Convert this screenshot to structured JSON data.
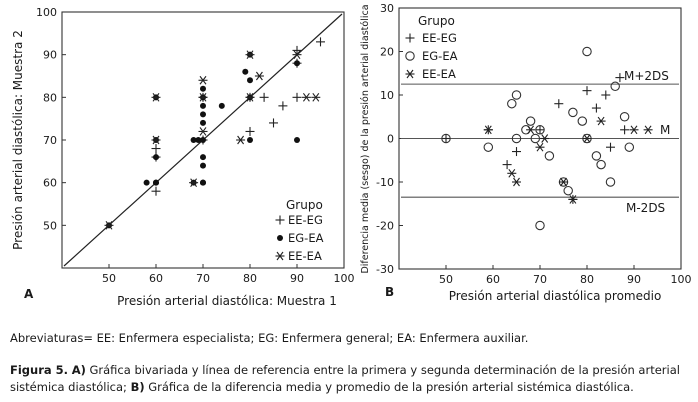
{
  "chart_data": [
    {
      "type": "scatter",
      "panel_label": "A",
      "xlabel": "Presión arterial diastólica: Muestra 1",
      "ylabel": "Presión arterial diastólica: Muestra 2",
      "xlim": [
        40,
        100
      ],
      "ylim": [
        40,
        100
      ],
      "x_ticks": [
        "50",
        "60",
        "70",
        "80",
        "90",
        "100"
      ],
      "y_ticks": [
        "100",
        "90",
        "80",
        "70",
        "60",
        "50"
      ],
      "grid": false,
      "reference_line": "y = x",
      "legend": {
        "title": "Grupo",
        "position": "bottom-right",
        "entries": [
          "EE-EG",
          "EG-EA",
          "EE-EA"
        ]
      },
      "series": [
        {
          "name": "EE-EG",
          "marker": "plus",
          "x": [
            60,
            60,
            60,
            70,
            70,
            80,
            80,
            83,
            85,
            87,
            90,
            90,
            90,
            95
          ],
          "y": [
            58,
            66,
            68,
            70,
            80,
            80,
            72,
            80,
            74,
            78,
            80,
            88,
            91,
            93
          ]
        },
        {
          "name": "EG-EA",
          "marker": "dot",
          "x": [
            50,
            58,
            60,
            60,
            60,
            60,
            60,
            68,
            68,
            69,
            70,
            70,
            70,
            70,
            70,
            70,
            70,
            70,
            70,
            70,
            74,
            79,
            80,
            80,
            80,
            80,
            90,
            90
          ],
          "y": [
            50,
            60,
            60,
            60,
            66,
            70,
            80,
            60,
            70,
            70,
            60,
            60,
            64,
            66,
            70,
            74,
            76,
            78,
            80,
            82,
            78,
            86,
            84,
            80,
            90,
            70,
            70,
            88
          ]
        },
        {
          "name": "EE-EA",
          "marker": "star",
          "x": [
            50,
            60,
            60,
            68,
            70,
            70,
            70,
            78,
            80,
            80,
            82,
            90,
            92,
            94
          ],
          "y": [
            50,
            80,
            70,
            60,
            72,
            84,
            80,
            70,
            80,
            90,
            85,
            90,
            80,
            80
          ]
        }
      ]
    },
    {
      "type": "scatter",
      "panel_label": "B",
      "xlabel": "Presión arterial diastólica promedio",
      "ylabel": "Diferencia media (sesgo) de la presión arterial diastólica",
      "xlim": [
        40,
        100
      ],
      "ylim": [
        -30,
        30
      ],
      "x_ticks": [
        "50",
        "60",
        "70",
        "80",
        "90",
        "100"
      ],
      "y_ticks": [
        "30",
        "20",
        "10",
        "0",
        "-10",
        "-20",
        "-30"
      ],
      "grid": false,
      "reference_lines": [
        {
          "label": "M+2DS",
          "y": 12.5
        },
        {
          "label": "M",
          "y": 0
        },
        {
          "label": "M-2DS",
          "y": -13.5
        }
      ],
      "legend": {
        "title": "Grupo",
        "position": "top-left",
        "entries": [
          "EE-EG",
          "EG-EA",
          "EE-EA"
        ]
      },
      "series": [
        {
          "name": "EE-EG",
          "marker": "plus",
          "x": [
            50,
            59,
            63,
            65,
            70,
            74,
            77,
            80,
            82,
            84,
            85,
            87,
            88
          ],
          "y": [
            0,
            2,
            -6,
            -3,
            2,
            8,
            -14,
            11,
            7,
            10,
            -2,
            14,
            2
          ]
        },
        {
          "name": "EG-EA",
          "marker": "circle",
          "x": [
            50,
            59,
            64,
            65,
            65,
            67,
            68,
            69,
            70,
            72,
            75,
            76,
            77,
            79,
            80,
            80,
            82,
            83,
            85,
            86,
            88,
            89,
            70
          ],
          "y": [
            0,
            -2,
            8,
            10,
            0,
            2,
            4,
            0,
            2,
            -4,
            -10,
            -12,
            6,
            4,
            20,
            0,
            -4,
            -6,
            -10,
            12,
            5,
            -2,
            -20
          ]
        },
        {
          "name": "EE-EA",
          "marker": "star",
          "x": [
            59,
            64,
            65,
            68,
            70,
            71,
            75,
            77,
            80,
            83,
            90,
            93
          ],
          "y": [
            2,
            -8,
            -10,
            2,
            -2,
            0,
            -10,
            -14,
            0,
            4,
            2,
            2
          ]
        }
      ]
    }
  ],
  "note": "Abreviaturas= EE: Enfermera especialista; EG: Enfermera general; EA: Enfermera auxiliar.",
  "caption": {
    "figure": "Figura 5.",
    "part_a_label": "A)",
    "part_a_text": "Gráfica bivariada y línea de referencia entre la primera y segunda determinación de la presión arterial sistémica diastólica;",
    "part_b_label": "B)",
    "part_b_text": "Gráfica de la diferencia media y promedio de la presión arterial sistémica diastólica."
  }
}
